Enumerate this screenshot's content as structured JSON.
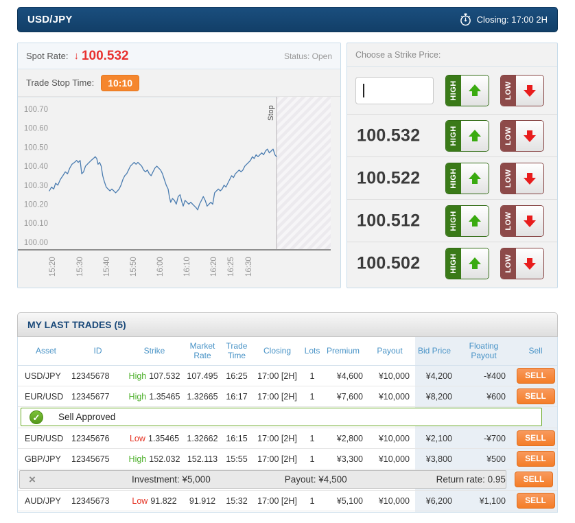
{
  "header": {
    "pair": "USD/JPY",
    "closing": "Closing: 17:00 2H"
  },
  "icons": {
    "down_arrow": "↓",
    "check": "✓",
    "close": "×"
  },
  "colors": {
    "topbar_blue": "#123f68",
    "spot_red": "#e8312f",
    "badge_orange": "#f5862d",
    "high_green": "#3a7a18",
    "arrow_green": "#3aaa10",
    "low_maroon": "#8d4a49",
    "arrow_red": "#e81c1c",
    "sell_orange": "#f47d28",
    "header_text_blue": "#4792c6",
    "chart_line": "#4a7cb0",
    "approve_green": "#65a821"
  },
  "market": {
    "spot_label": "Spot Rate:",
    "spot_value": "100.532",
    "status": "Status: Open",
    "stop_time_label": "Trade Stop Time:",
    "stop_time_value": "10:10"
  },
  "chart_data": {
    "type": "line",
    "ylabel": "",
    "xlabel": "",
    "ylim": [
      99.96,
      100.765
    ],
    "grid": false,
    "stop_label": "Stop",
    "stop_frac": 0.821,
    "yticks": [
      {
        "v": 100.7,
        "label": "100.70"
      },
      {
        "v": 100.6,
        "label": "100.60"
      },
      {
        "v": 100.5,
        "label": "100.50"
      },
      {
        "v": 100.4,
        "label": "100.40"
      },
      {
        "v": 100.3,
        "label": "100.30"
      },
      {
        "v": 100.2,
        "label": "100.20"
      },
      {
        "v": 100.1,
        "label": "100.10"
      },
      {
        "v": 100.0,
        "label": "100.00"
      }
    ],
    "xticks": [
      {
        "label": "15:20",
        "f": 0.107
      },
      {
        "label": "15:30",
        "f": 0.194
      },
      {
        "label": "15:40",
        "f": 0.279
      },
      {
        "label": "15:50",
        "f": 0.365
      },
      {
        "label": "16:00",
        "f": 0.45
      },
      {
        "label": "16:10",
        "f": 0.535
      },
      {
        "label": "16:20",
        "f": 0.62
      },
      {
        "label": "16:25",
        "f": 0.675
      },
      {
        "label": "16:30",
        "f": 0.731
      }
    ],
    "points": [
      [
        0.098,
        100.27
      ],
      [
        0.105,
        100.29
      ],
      [
        0.112,
        100.28
      ],
      [
        0.118,
        100.31
      ],
      [
        0.125,
        100.3
      ],
      [
        0.133,
        100.33
      ],
      [
        0.141,
        100.35
      ],
      [
        0.149,
        100.37
      ],
      [
        0.156,
        100.36
      ],
      [
        0.163,
        100.39
      ],
      [
        0.17,
        100.41
      ],
      [
        0.178,
        100.42
      ],
      [
        0.185,
        100.43
      ],
      [
        0.19,
        100.42
      ],
      [
        0.196,
        100.43
      ],
      [
        0.201,
        100.36
      ],
      [
        0.207,
        100.37
      ],
      [
        0.213,
        100.4
      ],
      [
        0.219,
        100.41
      ],
      [
        0.225,
        100.42
      ],
      [
        0.231,
        100.43
      ],
      [
        0.238,
        100.44
      ],
      [
        0.244,
        100.45
      ],
      [
        0.249,
        100.44
      ],
      [
        0.253,
        100.41
      ],
      [
        0.258,
        100.42
      ],
      [
        0.263,
        100.4
      ],
      [
        0.268,
        100.35
      ],
      [
        0.273,
        100.32
      ],
      [
        0.279,
        100.29
      ],
      [
        0.285,
        100.28
      ],
      [
        0.291,
        100.27
      ],
      [
        0.297,
        100.28
      ],
      [
        0.303,
        100.27
      ],
      [
        0.309,
        100.26
      ],
      [
        0.315,
        100.27
      ],
      [
        0.32,
        100.28
      ],
      [
        0.326,
        100.3
      ],
      [
        0.332,
        100.33
      ],
      [
        0.338,
        100.35
      ],
      [
        0.344,
        100.36
      ],
      [
        0.35,
        100.38
      ],
      [
        0.356,
        100.4
      ],
      [
        0.362,
        100.41
      ],
      [
        0.368,
        100.42
      ],
      [
        0.374,
        100.41
      ],
      [
        0.38,
        100.42
      ],
      [
        0.386,
        100.41
      ],
      [
        0.392,
        100.4
      ],
      [
        0.398,
        100.38
      ],
      [
        0.404,
        100.37
      ],
      [
        0.41,
        100.38
      ],
      [
        0.416,
        100.36
      ],
      [
        0.422,
        100.35
      ],
      [
        0.428,
        100.37
      ],
      [
        0.434,
        100.39
      ],
      [
        0.44,
        100.4
      ],
      [
        0.446,
        100.39
      ],
      [
        0.452,
        100.38
      ],
      [
        0.458,
        100.36
      ],
      [
        0.464,
        100.33
      ],
      [
        0.47,
        100.3
      ],
      [
        0.476,
        100.28
      ],
      [
        0.48,
        100.24
      ],
      [
        0.484,
        100.21
      ],
      [
        0.49,
        100.23
      ],
      [
        0.496,
        100.22
      ],
      [
        0.502,
        100.2
      ],
      [
        0.508,
        100.24
      ],
      [
        0.514,
        100.25
      ],
      [
        0.52,
        100.21
      ],
      [
        0.524,
        100.19
      ],
      [
        0.53,
        100.22
      ],
      [
        0.536,
        100.21
      ],
      [
        0.542,
        100.2
      ],
      [
        0.548,
        100.21
      ],
      [
        0.554,
        100.2
      ],
      [
        0.56,
        100.19
      ],
      [
        0.566,
        100.18
      ],
      [
        0.57,
        100.17
      ],
      [
        0.576,
        100.2
      ],
      [
        0.582,
        100.22
      ],
      [
        0.588,
        100.24
      ],
      [
        0.594,
        100.22
      ],
      [
        0.6,
        100.19
      ],
      [
        0.606,
        100.2
      ],
      [
        0.612,
        100.21
      ],
      [
        0.618,
        100.2
      ],
      [
        0.624,
        100.26
      ],
      [
        0.63,
        100.27
      ],
      [
        0.636,
        100.28
      ],
      [
        0.642,
        100.27
      ],
      [
        0.648,
        100.28
      ],
      [
        0.654,
        100.3
      ],
      [
        0.66,
        100.29
      ],
      [
        0.666,
        100.31
      ],
      [
        0.672,
        100.33
      ],
      [
        0.678,
        100.35
      ],
      [
        0.684,
        100.34
      ],
      [
        0.69,
        100.36
      ],
      [
        0.696,
        100.37
      ],
      [
        0.702,
        100.38
      ],
      [
        0.708,
        100.37
      ],
      [
        0.714,
        100.38
      ],
      [
        0.72,
        100.4
      ],
      [
        0.726,
        100.41
      ],
      [
        0.732,
        100.42
      ],
      [
        0.738,
        100.43
      ],
      [
        0.744,
        100.45
      ],
      [
        0.75,
        100.44
      ],
      [
        0.756,
        100.46
      ],
      [
        0.762,
        100.45
      ],
      [
        0.768,
        100.46
      ],
      [
        0.774,
        100.47
      ],
      [
        0.78,
        100.46
      ],
      [
        0.786,
        100.48
      ],
      [
        0.792,
        100.49
      ],
      [
        0.798,
        100.47
      ],
      [
        0.804,
        100.48
      ],
      [
        0.81,
        100.49
      ],
      [
        0.816,
        100.46
      ],
      [
        0.821,
        100.45
      ]
    ]
  },
  "strike_panel": {
    "title": "Choose a Strike Price:",
    "input_value": "",
    "high_label": "HIGH",
    "low_label": "LOW",
    "strikes": [
      "100.532",
      "100.522",
      "100.512",
      "100.502"
    ]
  },
  "trades": {
    "title": "MY LAST TRADES (5)",
    "sell_label": "SELL",
    "columns": [
      "Asset",
      "ID",
      "Strike",
      "Market Rate",
      "Trade Time",
      "Closing",
      "Lots",
      "Premium",
      "Payout",
      "Bid Price",
      "Floating Payout",
      "Sell"
    ],
    "rows": [
      {
        "asset": "USD/JPY",
        "id": "12345678",
        "direction": "High",
        "strike": "107.532",
        "market_rate": "107.495",
        "trade_time": "16:25",
        "closing": "17:00 [2H]",
        "lots": "1",
        "premium": "¥4,600",
        "payout": "¥10,000",
        "bid": "¥4,200",
        "floating": "-¥400"
      },
      {
        "asset": "EUR/USD",
        "id": "12345677",
        "direction": "High",
        "strike": "1.35465",
        "market_rate": "1.32665",
        "trade_time": "16:17",
        "closing": "17:00 [2H]",
        "lots": "1",
        "premium": "¥7,600",
        "payout": "¥10,000",
        "bid": "¥8,200",
        "floating": "¥600"
      },
      {
        "asset": "EUR/USD",
        "id": "12345676",
        "direction": "Low",
        "strike": "1.35465",
        "market_rate": "1.32662",
        "trade_time": "16:15",
        "closing": "17:00 [2H]",
        "lots": "1",
        "premium": "¥2,800",
        "payout": "¥10,000",
        "bid": "¥2,100",
        "floating": "-¥700"
      },
      {
        "asset": "GBP/JPY",
        "id": "12345675",
        "direction": "High",
        "strike": "152.032",
        "market_rate": "152.113",
        "trade_time": "15:55",
        "closing": "17:00 [2H]",
        "lots": "1",
        "premium": "¥3,300",
        "payout": "¥10,000",
        "bid": "¥3,800",
        "floating": "¥500"
      },
      {
        "asset": "AUD/JPY",
        "id": "12345673",
        "direction": "Low",
        "strike": "91.822",
        "market_rate": "91.912",
        "trade_time": "15:32",
        "closing": "17:00 [2H]",
        "lots": "1",
        "premium": "¥5,100",
        "payout": "¥10,000",
        "bid": "¥6,200",
        "floating": "¥1,100"
      }
    ],
    "banner_after_row": 1,
    "detail_after_row": 3,
    "approved_banner": "Sell Approved",
    "detail": {
      "investment": "Investment: ¥5,000",
      "payout": "Payout: ¥4,500",
      "return_rate": "Return rate: 0.95"
    }
  }
}
